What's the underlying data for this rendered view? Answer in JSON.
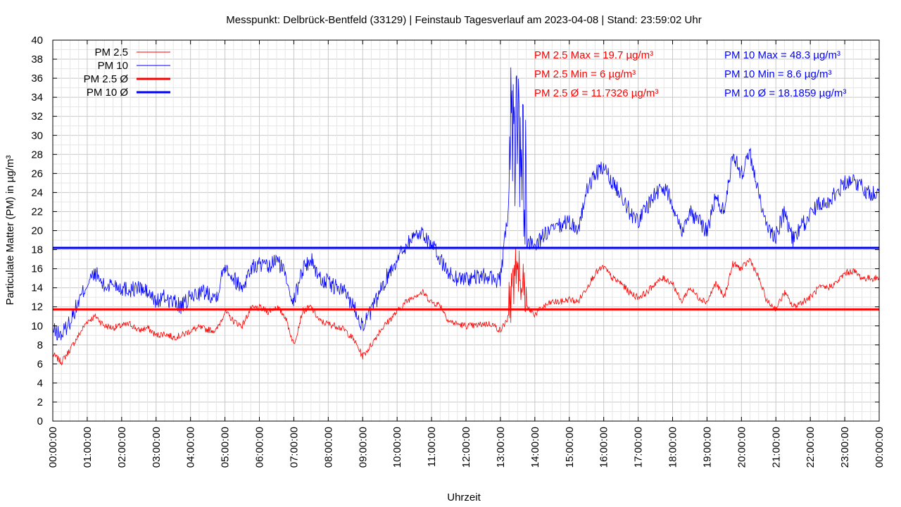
{
  "chart_data": {
    "type": "line",
    "title": "Messpunkt: Delbrück-Bentfeld (33129) | Feinstaub Tagesverlauf am 2023-04-08 | Stand: 23:59:02 Uhr",
    "xlabel": "Uhrzeit",
    "ylabel": "Particulate Matter (PM) in µg/m³",
    "ylim": [
      0,
      40
    ],
    "xlim_hours": [
      0,
      24
    ],
    "grid": true,
    "legend_position": "top-left",
    "yticks": [
      "0",
      "2",
      "4",
      "6",
      "8",
      "10",
      "12",
      "14",
      "16",
      "18",
      "20",
      "22",
      "24",
      "26",
      "28",
      "30",
      "32",
      "34",
      "36",
      "38",
      "40"
    ],
    "xticks": [
      "00:00:00",
      "01:00:00",
      "02:00:00",
      "03:00:00",
      "04:00:00",
      "05:00:00",
      "06:00:00",
      "07:00:00",
      "08:00:00",
      "09:00:00",
      "10:00:00",
      "11:00:00",
      "12:00:00",
      "13:00:00",
      "14:00:00",
      "15:00:00",
      "16:00:00",
      "17:00:00",
      "18:00:00",
      "19:00:00",
      "20:00:00",
      "21:00:00",
      "22:00:00",
      "23:00:00",
      "00:00:00"
    ],
    "legend": [
      {
        "label": "PM 2.5",
        "color": "#ff0000",
        "width": 1
      },
      {
        "label": "PM 10",
        "color": "#0000ff",
        "width": 1
      },
      {
        "label": "PM 2.5 Ø",
        "color": "#ff0000",
        "width": 3
      },
      {
        "label": "PM 10 Ø",
        "color": "#0000ff",
        "width": 3
      }
    ],
    "annotations": {
      "pm25": [
        "PM 2.5 Max = 19.7 µg/m³",
        "PM 2.5 Min = 6 µg/m³",
        "PM 2.5 Ø = 11.7326 µg/m³"
      ],
      "pm10": [
        "PM 10 Max = 48.3 µg/m³",
        "PM 10 Min = 8.6 µg/m³",
        "PM 10 Ø = 18.1859 µg/m³"
      ]
    },
    "series": [
      {
        "name": "PM 2.5",
        "color": "#ff0000",
        "x": [
          0,
          0.25,
          0.5,
          0.75,
          1,
          1.25,
          1.5,
          1.75,
          2,
          2.25,
          2.5,
          2.75,
          3,
          3.25,
          3.5,
          3.75,
          4,
          4.25,
          4.5,
          4.75,
          5,
          5.25,
          5.5,
          5.75,
          6,
          6.25,
          6.5,
          6.75,
          7,
          7.25,
          7.5,
          7.75,
          8,
          8.25,
          8.5,
          8.75,
          9,
          9.25,
          9.5,
          9.75,
          10,
          10.25,
          10.5,
          10.75,
          11,
          11.25,
          11.5,
          11.75,
          12,
          12.25,
          12.5,
          12.75,
          13,
          13.25,
          13.5,
          13.75,
          14,
          14.25,
          14.5,
          14.75,
          15,
          15.25,
          15.5,
          15.75,
          16,
          16.25,
          16.5,
          16.75,
          17,
          17.25,
          17.5,
          17.75,
          18,
          18.25,
          18.5,
          18.75,
          19,
          19.25,
          19.5,
          19.75,
          20,
          20.25,
          20.5,
          20.75,
          21,
          21.25,
          21.5,
          21.75,
          22,
          22.25,
          22.5,
          22.75,
          23,
          23.25,
          23.5,
          23.75,
          24
        ],
        "values": [
          7.0,
          6.2,
          7.5,
          9.0,
          10.5,
          11.0,
          10.0,
          9.8,
          10.0,
          10.2,
          9.5,
          9.8,
          9.0,
          9.2,
          8.8,
          9.0,
          9.5,
          9.8,
          9.6,
          9.5,
          11.5,
          10.5,
          10.0,
          11.8,
          11.9,
          11.5,
          12.0,
          11.0,
          8.0,
          11.5,
          12.0,
          10.5,
          10.2,
          10.0,
          9.5,
          8.5,
          6.8,
          8.0,
          9.5,
          10.5,
          11.5,
          12.5,
          13.2,
          13.5,
          12.5,
          12.2,
          10.5,
          10.2,
          10.0,
          10.0,
          10.2,
          10.2,
          9.5,
          11.0,
          16.0,
          12.0,
          11.2,
          12.0,
          12.5,
          12.5,
          12.8,
          12.5,
          14.0,
          15.5,
          16.2,
          15.0,
          14.5,
          13.5,
          13.0,
          13.5,
          14.5,
          15.0,
          14.5,
          12.5,
          14.0,
          13.0,
          12.5,
          14.5,
          13.0,
          16.5,
          16.0,
          17.0,
          15.0,
          12.5,
          11.8,
          13.5,
          12.0,
          12.5,
          13.0,
          14.0,
          14.0,
          14.5,
          15.5,
          15.8,
          15.0,
          15.0,
          15.0
        ]
      },
      {
        "name": "PM 10",
        "color": "#0000ff",
        "x": [
          0,
          0.25,
          0.5,
          0.75,
          1,
          1.25,
          1.5,
          1.75,
          2,
          2.25,
          2.5,
          2.75,
          3,
          3.25,
          3.5,
          3.75,
          4,
          4.25,
          4.5,
          4.75,
          5,
          5.25,
          5.5,
          5.75,
          6,
          6.25,
          6.5,
          6.75,
          7,
          7.25,
          7.5,
          7.75,
          8,
          8.25,
          8.5,
          8.75,
          9,
          9.25,
          9.5,
          9.75,
          10,
          10.25,
          10.5,
          10.75,
          11,
          11.25,
          11.5,
          11.75,
          12,
          12.25,
          12.5,
          12.75,
          13,
          13.25,
          13.5,
          13.75,
          14,
          14.25,
          14.5,
          14.75,
          15,
          15.25,
          15.5,
          15.75,
          16,
          16.25,
          16.5,
          16.75,
          17,
          17.25,
          17.5,
          17.75,
          18,
          18.25,
          18.5,
          18.75,
          19,
          19.25,
          19.5,
          19.75,
          20,
          20.25,
          20.5,
          20.75,
          21,
          21.25,
          21.5,
          21.75,
          22,
          22.25,
          22.5,
          22.75,
          23,
          23.25,
          23.5,
          23.75,
          24
        ],
        "values": [
          9.5,
          9.0,
          10.5,
          12.5,
          14.5,
          15.5,
          14.0,
          14.5,
          14.0,
          13.8,
          14.0,
          13.5,
          12.5,
          13.0,
          12.5,
          12.0,
          13.0,
          13.5,
          13.5,
          13.0,
          16.5,
          15.0,
          14.0,
          16.0,
          16.5,
          16.0,
          17.0,
          15.5,
          12.5,
          16.0,
          17.0,
          15.0,
          14.5,
          14.0,
          13.5,
          12.0,
          10.0,
          11.5,
          13.5,
          15.5,
          17.0,
          18.5,
          19.5,
          19.8,
          18.5,
          17.0,
          15.5,
          15.0,
          15.0,
          15.0,
          15.2,
          15.0,
          14.8,
          23.0,
          28.0,
          19.0,
          18.5,
          19.5,
          20.0,
          20.5,
          21.0,
          20.0,
          24.0,
          26.0,
          26.5,
          25.0,
          24.0,
          22.0,
          21.0,
          22.5,
          24.0,
          24.5,
          23.0,
          20.0,
          22.0,
          21.0,
          20.0,
          23.5,
          22.0,
          28.0,
          26.0,
          28.0,
          24.0,
          20.0,
          19.5,
          22.0,
          19.0,
          20.5,
          21.5,
          23.0,
          23.0,
          24.0,
          25.0,
          25.5,
          24.5,
          24.0,
          24.0
        ]
      },
      {
        "name": "PM 2.5 Ø",
        "color": "#ff0000",
        "x": [
          0,
          24
        ],
        "values": [
          11.7326,
          11.7326
        ]
      },
      {
        "name": "PM 10 Ø",
        "color": "#0000ff",
        "x": [
          0,
          24
        ],
        "values": [
          18.1859,
          18.1859
        ]
      }
    ]
  }
}
